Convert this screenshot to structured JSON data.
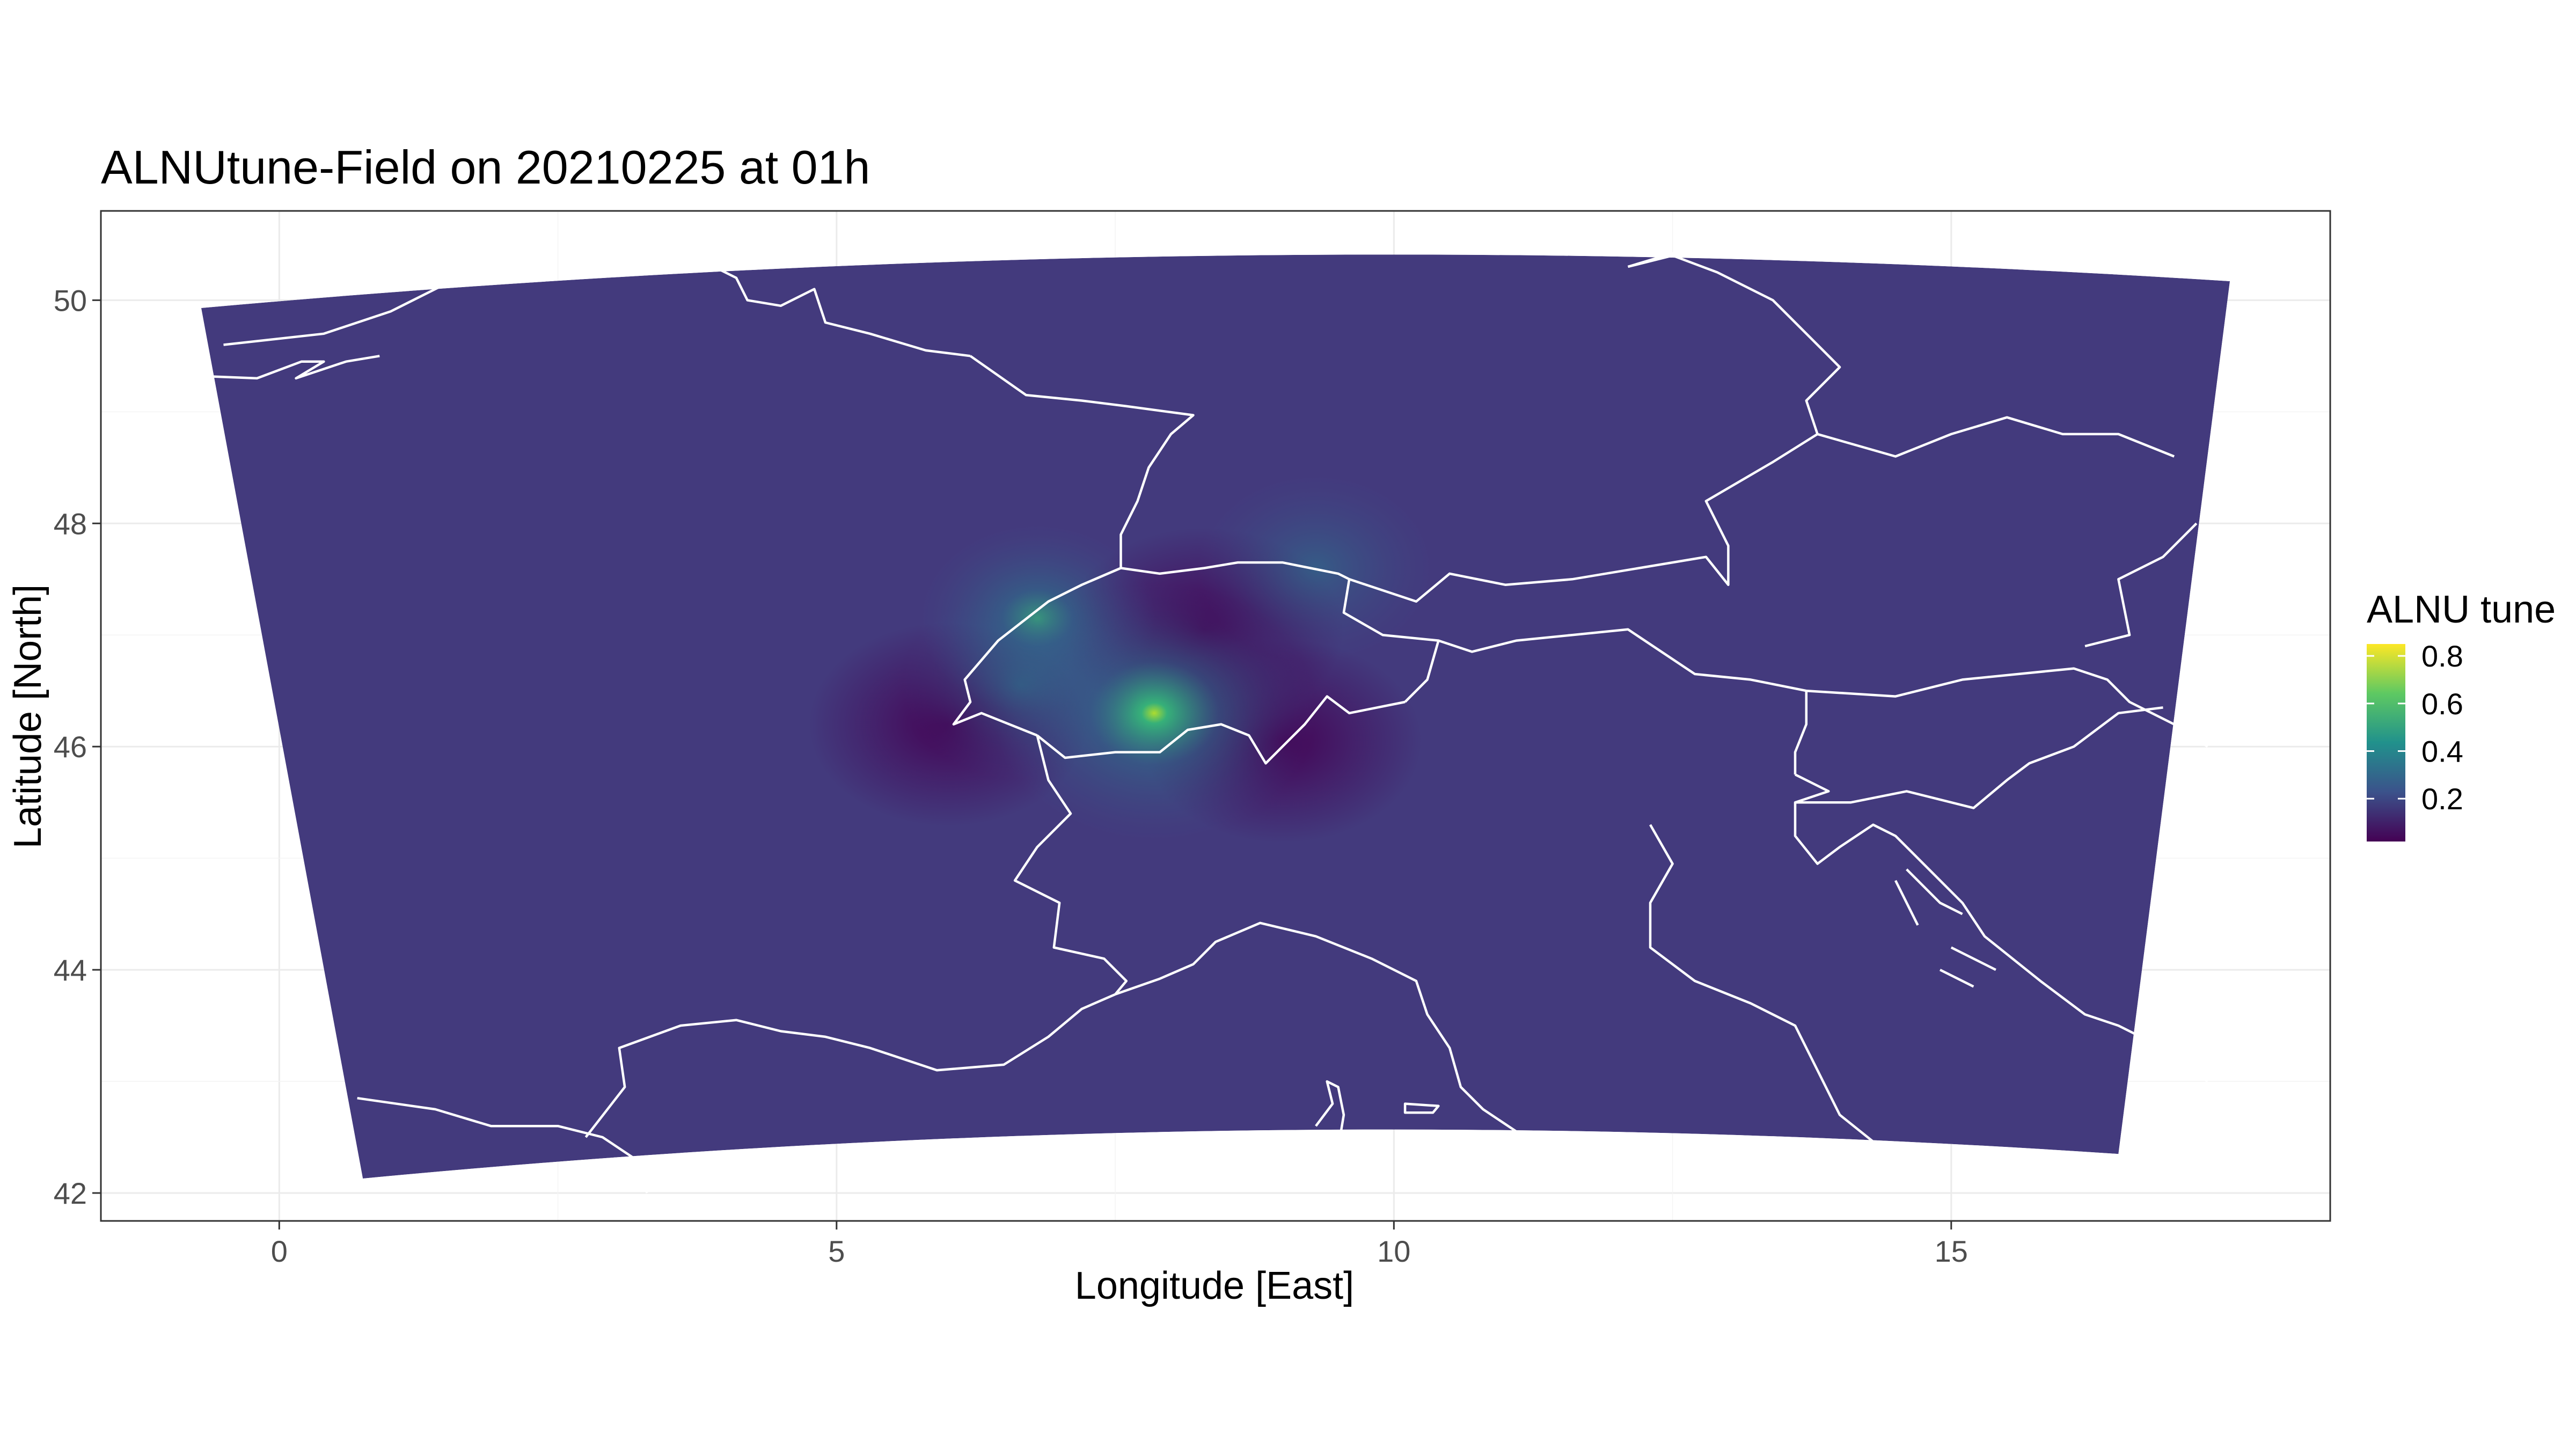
{
  "chart_data": {
    "type": "heatmap",
    "title": "ALNUtune-Field on 20210225 at 01h",
    "xlabel": "Longitude [East]",
    "ylabel": "Latitude [North]",
    "xlim": [
      -1.6,
      18.4
    ],
    "ylim": [
      41.75,
      50.8
    ],
    "x_ticks": [
      0,
      5,
      10,
      15
    ],
    "y_ticks": [
      42,
      44,
      46,
      48,
      50
    ],
    "x_tick_labels": [
      "0",
      "5",
      "10",
      "15"
    ],
    "y_tick_labels": [
      "42",
      "44",
      "46",
      "48",
      "50"
    ],
    "grid": true,
    "domain_corners": {
      "north_west": [
        -0.7,
        49.93
      ],
      "north_east": [
        17.5,
        50.17
      ],
      "south_west": [
        0.75,
        42.13
      ],
      "south_east": [
        16.5,
        42.35
      ]
    },
    "background_value": 0.12,
    "local_maxima": [
      {
        "lon": 7.85,
        "lat": 46.3,
        "value": 0.6
      },
      {
        "lon": 6.8,
        "lat": 47.15,
        "value": 0.35
      },
      {
        "lon": 9.3,
        "lat": 47.6,
        "value": 0.3
      },
      {
        "lon": 6.65,
        "lat": 46.55,
        "value": 0.3
      }
    ],
    "local_minima": [
      {
        "lon": 6.0,
        "lat": 46.2,
        "value": 0.03
      },
      {
        "lon": 9.0,
        "lat": 46.05,
        "value": 0.03
      },
      {
        "lon": 8.3,
        "lat": 47.05,
        "value": 0.05
      }
    ],
    "legend": {
      "title": "ALNU tune",
      "position": "right",
      "colormap": "viridis",
      "range": [
        0.02,
        0.85
      ],
      "ticks": [
        0.2,
        0.4,
        0.6,
        0.8
      ],
      "tick_labels": [
        "0.2",
        "0.4",
        "0.6",
        "0.8"
      ]
    }
  }
}
